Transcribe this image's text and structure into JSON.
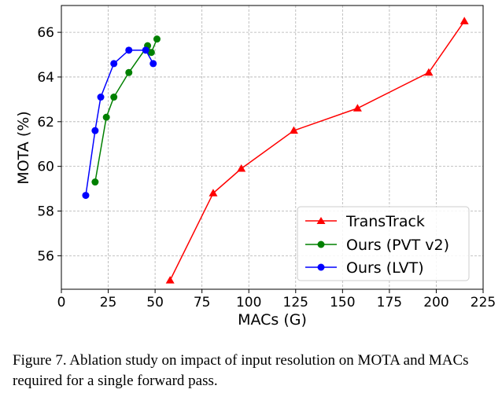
{
  "chart_data": {
    "type": "line",
    "xlabel": "MACs (G)",
    "ylabel": "MOTA (%)",
    "xlim": [
      0,
      225
    ],
    "ylim": [
      54.5,
      67.2
    ],
    "xticks": [
      0,
      25,
      50,
      75,
      100,
      125,
      150,
      175,
      200,
      225
    ],
    "yticks": [
      56,
      58,
      60,
      62,
      64,
      66
    ],
    "grid": true,
    "legend_position": "lower-right",
    "series": [
      {
        "name": "TransTrack",
        "color": "#ff0000",
        "marker": "triangle",
        "x": [
          58,
          81,
          96,
          124,
          158,
          196,
          215
        ],
        "y": [
          54.9,
          58.8,
          59.9,
          61.6,
          62.6,
          64.2,
          66.5
        ]
      },
      {
        "name": "Ours (PVT v2)",
        "color": "#008000",
        "marker": "circle",
        "x": [
          18,
          24,
          28,
          36,
          46,
          48,
          51
        ],
        "y": [
          59.3,
          62.2,
          63.1,
          64.2,
          65.4,
          65.1,
          65.7
        ]
      },
      {
        "name": "Ours (LVT)",
        "color": "#0000ff",
        "marker": "circle",
        "x": [
          13,
          18,
          21,
          28,
          36,
          45,
          49
        ],
        "y": [
          58.7,
          61.6,
          63.1,
          64.6,
          65.2,
          65.2,
          64.6
        ]
      }
    ]
  },
  "caption": "Figure 7. Ablation study on impact of input resolution on MOTA and MACs required for a single forward pass."
}
